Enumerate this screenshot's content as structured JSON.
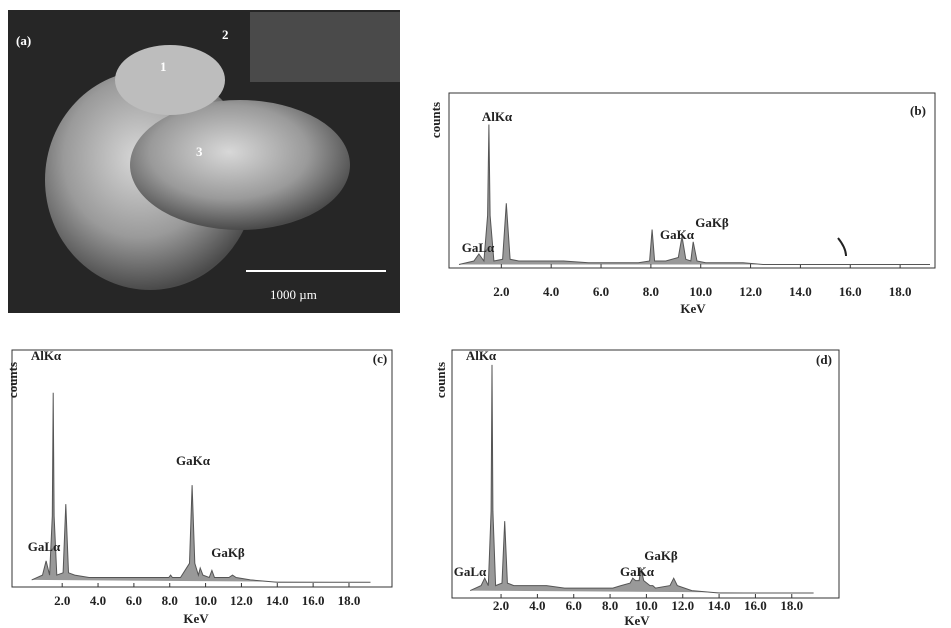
{
  "figure_panel": {
    "label": "(a)",
    "regions": [
      "1",
      "2",
      "3"
    ],
    "scale_bar": "1000 µm"
  },
  "chart_data": [
    {
      "type": "line",
      "panel_label": "(b)",
      "y_label": "counts",
      "x_label": "KeV",
      "color": "#555555",
      "annotations": [
        "AlKα",
        "GaLα",
        "GaKα",
        "GaKβ"
      ],
      "xlim": [
        -0.1,
        19.4
      ],
      "ylim": [
        0,
        100
      ],
      "xticks": [
        {
          "value": 2,
          "label": "2.0"
        },
        {
          "value": 4,
          "label": "4.0"
        },
        {
          "value": 6,
          "label": "6.0"
        },
        {
          "value": 8,
          "label": "8.0"
        },
        {
          "value": 10,
          "label": "10.0"
        },
        {
          "value": 12,
          "label": "12.0"
        },
        {
          "value": 14,
          "label": "14.0"
        },
        {
          "value": 16,
          "label": "16.0"
        },
        {
          "value": 18,
          "label": "18.0"
        }
      ],
      "x": [
        0.3,
        0.9,
        1.1,
        1.3,
        1.45,
        1.5,
        1.55,
        1.7,
        2.05,
        2.2,
        2.35,
        2.7,
        3.5,
        4.5,
        5.5,
        6.5,
        7.5,
        7.95,
        8.05,
        8.15,
        8.6,
        9.1,
        9.25,
        9.4,
        9.6,
        9.7,
        9.85,
        10.2,
        10.35,
        10.5,
        11.3,
        11.5,
        11.7,
        12.5,
        14,
        16,
        18,
        19.2
      ],
      "values": [
        2,
        4,
        8,
        4,
        30,
        82,
        30,
        4,
        5,
        37,
        5,
        4,
        4,
        4,
        3,
        3,
        3,
        4,
        22,
        4,
        4,
        6,
        18,
        5,
        4,
        15,
        4,
        3,
        3,
        3,
        3,
        3,
        3,
        2,
        2,
        2,
        2,
        2
      ]
    },
    {
      "type": "line",
      "panel_label": "(c)",
      "y_label": "counts",
      "x_label": "KeV",
      "color": "#555555",
      "annotations": [
        "AlKα",
        "GaLα",
        "GaKα",
        "GaKβ"
      ],
      "xlim": [
        -0.8,
        20.4
      ],
      "ylim": [
        0,
        100
      ],
      "xticks": [
        {
          "value": 2,
          "label": "2.0"
        },
        {
          "value": 4,
          "label": "4.0"
        },
        {
          "value": 6,
          "label": "6.0"
        },
        {
          "value": 8,
          "label": "8.0"
        },
        {
          "value": 10,
          "label": "10.0"
        },
        {
          "value": 12,
          "label": "12.0"
        },
        {
          "value": 14,
          "label": "14.0"
        },
        {
          "value": 16,
          "label": "16.0"
        },
        {
          "value": 18,
          "label": "18.0"
        }
      ],
      "x": [
        0.3,
        0.9,
        1.1,
        1.3,
        1.45,
        1.5,
        1.55,
        1.7,
        2.05,
        2.2,
        2.35,
        2.7,
        3.5,
        4.5,
        5.5,
        6.5,
        7.5,
        7.95,
        8.05,
        8.15,
        8.6,
        9.1,
        9.25,
        9.4,
        9.6,
        9.7,
        9.85,
        10.2,
        10.35,
        10.5,
        11.3,
        11.5,
        11.7,
        12.5,
        14,
        16,
        18,
        19.2
      ],
      "values": [
        3,
        5,
        11,
        5,
        30,
        82,
        30,
        5,
        6,
        35,
        6,
        5,
        4,
        4,
        4,
        4,
        4,
        4,
        5,
        4,
        4,
        10,
        43,
        10,
        5,
        8,
        5,
        4,
        7,
        4,
        4,
        5,
        4,
        3,
        2,
        2,
        2,
        2
      ]
    },
    {
      "type": "line",
      "panel_label": "(d)",
      "y_label": "counts",
      "x_label": "KeV",
      "color": "#555555",
      "annotations": [
        "AlKα",
        "GaLα",
        "GaKα",
        "GaKβ"
      ],
      "xlim": [
        -0.7,
        20.6
      ],
      "ylim": [
        0,
        100
      ],
      "xticks": [
        {
          "value": 2,
          "label": "2.0"
        },
        {
          "value": 4,
          "label": "4.0"
        },
        {
          "value": 6,
          "label": "6.0"
        },
        {
          "value": 8,
          "label": "8.0"
        },
        {
          "value": 10,
          "label": "10.0"
        },
        {
          "value": 12,
          "label": "12.0"
        },
        {
          "value": 14,
          "label": "14.0"
        },
        {
          "value": 16,
          "label": "16.0"
        },
        {
          "value": 18,
          "label": "18.0"
        }
      ],
      "x": [
        0.3,
        0.9,
        1.1,
        1.3,
        1.45,
        1.5,
        1.55,
        1.7,
        2.05,
        2.2,
        2.35,
        2.7,
        3.5,
        4.5,
        5.5,
        6.5,
        7.5,
        7.95,
        8.05,
        8.15,
        8.6,
        9.1,
        9.25,
        9.4,
        9.6,
        9.7,
        9.85,
        10.2,
        10.35,
        10.5,
        11.3,
        11.5,
        11.7,
        12.5,
        14,
        16,
        18,
        19.2
      ],
      "values": [
        3,
        5,
        8,
        5,
        35,
        94,
        35,
        5,
        6,
        31,
        6,
        5,
        5,
        5,
        4,
        4,
        4,
        4,
        4,
        4,
        5,
        6,
        8,
        7,
        7,
        12,
        7,
        5,
        5,
        4,
        5,
        8,
        5,
        3,
        2,
        2,
        2,
        2
      ]
    }
  ]
}
